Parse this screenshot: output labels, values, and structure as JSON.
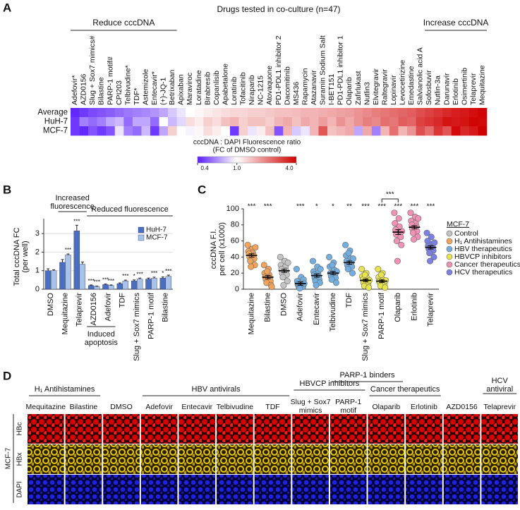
{
  "panel_labels": [
    "A",
    "B",
    "C",
    "D"
  ],
  "chart_data": [
    {
      "type": "heatmap",
      "title": "Drugs tested in co-culture (n=47)",
      "groups": [
        "Reduce cccDNA",
        "Increase cccDNA"
      ],
      "categories": [
        "Adefovir*",
        "AZD0156",
        "Slug + Sox7 mimics#",
        "Bilastine",
        "PARP-1 motif#",
        "CPI203",
        "Telbivudine*",
        "TDF*",
        "Astemizole",
        "Entecavir*",
        "(+)-JQ-1",
        "Betrixaban",
        "Apixaban",
        "Maraviroc",
        "Loratadine",
        "Birabresib",
        "Copanlisib",
        "Apabetalone",
        "Loratinib",
        "Tofacitinib",
        "Niraparib",
        "NC-1215",
        "Atovaquone",
        "PD1-PDL1 inhibitor 2",
        "Dacomitinib",
        "MS436",
        "Rapamycin",
        "Atazanavir",
        "Suramin Sodium Salt",
        "I-BET151",
        "PD1-PDL1 inhibitor 1",
        "Olaparib",
        "Zafirlukast",
        "Nutlin3",
        "Elvitegravir",
        "Raltegravir",
        "Lopinavir",
        "Levocetirizine",
        "Emedastine",
        "Salvianolic acid A",
        "Sofosbuvir",
        "Nutlin-3a",
        "Darunavir",
        "Erlotinib",
        "Osimertinib",
        "Telaprevir",
        "Mequitazine"
      ],
      "rows": [
        "Average",
        "HuH-7",
        "MCF-7"
      ],
      "values": [
        [
          0.42,
          0.45,
          0.48,
          0.5,
          0.52,
          0.55,
          0.58,
          0.6,
          0.62,
          0.65,
          0.7,
          0.8,
          0.9,
          1.0,
          1.05,
          1.1,
          1.15,
          1.2,
          1.25,
          1.25,
          1.3,
          1.3,
          1.35,
          1.4,
          1.4,
          1.45,
          1.5,
          1.5,
          1.55,
          1.6,
          1.65,
          1.7,
          1.8,
          1.9,
          2.0,
          2.1,
          2.2,
          2.3,
          2.4,
          2.6,
          2.8,
          3.0,
          3.2,
          3.4,
          3.5,
          3.7,
          3.9
        ],
        [
          0.45,
          0.6,
          0.55,
          0.6,
          0.7,
          0.75,
          0.55,
          0.7,
          0.7,
          0.55,
          1.0,
          0.75,
          0.85,
          1.2,
          1.1,
          1.3,
          1.2,
          1.4,
          1.5,
          1.3,
          1.4,
          1.4,
          1.3,
          1.5,
          1.6,
          1.4,
          1.6,
          1.5,
          1.7,
          1.5,
          1.8,
          1.6,
          1.8,
          2.0,
          1.9,
          2.2,
          2.1,
          2.4,
          2.3,
          2.8,
          3.0,
          3.2,
          3.6,
          3.5,
          3.6,
          3.9,
          3.8
        ],
        [
          0.45,
          0.42,
          0.5,
          0.45,
          0.5,
          0.9,
          0.6,
          0.55,
          0.75,
          0.45,
          0.7,
          1.3,
          1.0,
          0.95,
          1.05,
          1.2,
          1.1,
          1.0,
          0.45,
          1.3,
          0.9,
          1.1,
          1.4,
          0.5,
          1.5,
          0.8,
          0.9,
          1.5,
          2.5,
          1.4,
          1.5,
          1.6,
          0.7,
          1.6,
          0.6,
          1.5,
          2.2,
          1.5,
          1.8,
          2.6,
          2.2,
          3.0,
          2.5,
          3.8,
          3.2,
          3.5,
          4.0
        ]
      ],
      "colorbar_title": "cccDNA : DAPI Fluorescence ratio",
      "colorbar_subtitle": "(FC of DMSO control)",
      "log_scale": true,
      "clim": [
        0.4,
        4.0
      ],
      "cticks": [
        0.4,
        {
          "value": 1.0,
          "label": "1.0"
        },
        {
          "value": 4.0,
          "label": "4.0"
        }
      ],
      "colormap": [
        "#5a1cff",
        "#ffffff",
        "#d10000"
      ]
    },
    {
      "type": "bar",
      "y_label": [
        "Total cccDNA FC",
        "(per well)"
      ],
      "categories": [
        "DMSO",
        "Mequitazine",
        "Telaprevir",
        "AZD0156",
        "Adefovir",
        "TDF",
        "Slug + Sox7 mimics",
        "PARP-1 motif",
        "Bilastine"
      ],
      "series": [
        {
          "name": "HuH-7",
          "color": "#4a6fc0",
          "values": [
            1.0,
            1.45,
            3.15,
            0.2,
            0.25,
            0.3,
            0.45,
            0.55,
            0.6
          ],
          "errors": [
            0.1,
            0.15,
            0.3,
            0.03,
            0.03,
            0.04,
            0.05,
            0.05,
            0.06
          ],
          "significance": [
            null,
            null,
            "***",
            "***",
            "***",
            null,
            "*",
            null,
            "*"
          ]
        },
        {
          "name": "MCF-7",
          "color": "#a8c3ea",
          "values": [
            1.0,
            1.85,
            1.35,
            0.15,
            0.2,
            0.45,
            0.55,
            0.6,
            0.7
          ],
          "errors": [
            0.05,
            0.05,
            0.12,
            0.02,
            0.03,
            0.04,
            0.05,
            0.05,
            0.06
          ],
          "significance": [
            null,
            "***",
            null,
            "***",
            "***",
            "***",
            "***",
            "***",
            "***"
          ]
        }
      ],
      "annotations": {
        "increased": [
          "Increased",
          "fluorescence"
        ],
        "reduced": "Reduced fluorescence",
        "apoptosis": [
          "Induced",
          "apoptosis"
        ]
      },
      "ylim": [
        0,
        3.5
      ],
      "yticks": [
        0,
        1,
        2,
        3
      ],
      "grid": true,
      "legend": "upper right"
    },
    {
      "type": "dot",
      "y_label": [
        "cccDNA F.I.",
        "per cell (x1000)"
      ],
      "categories": [
        "Mequitazine",
        "Bilastine",
        "DMSO",
        "Adefovir",
        "Entecavir",
        "Telbivudine",
        "TDF",
        "Slug + Sox7 mimics",
        "PARP-1 motif",
        "Olaparib",
        "Erlotinib",
        "Telaprevir"
      ],
      "category_group": [
        1,
        1,
        0,
        2,
        2,
        2,
        2,
        3,
        3,
        4,
        4,
        5
      ],
      "legend_title": "MCF-7",
      "groups": [
        {
          "name": "Control",
          "color": "#c4c4c4"
        },
        {
          "name": "H₁ Antihistamines",
          "color": "#f3a45a"
        },
        {
          "name": "HBV therapeutics",
          "color": "#72aee0"
        },
        {
          "name": "HBVCP inhibitors",
          "color": "#e8e34e"
        },
        {
          "name": "Cancer therapeutics",
          "color": "#f291b6"
        },
        {
          "name": "HCV therapeutics",
          "color": "#7b80e3"
        }
      ],
      "points": [
        [
          55,
          50,
          47,
          45,
          44,
          42,
          40,
          38,
          35,
          30,
          28,
          52
        ],
        [
          30,
          25,
          20,
          18,
          15,
          14,
          12,
          10,
          8,
          5,
          22,
          3
        ],
        [
          40,
          35,
          30,
          28,
          25,
          23,
          20,
          18,
          15,
          10,
          5,
          33
        ],
        [
          25,
          15,
          10,
          8,
          6,
          5,
          4,
          3,
          2,
          12,
          1,
          7
        ],
        [
          35,
          28,
          22,
          20,
          18,
          16,
          14,
          12,
          10,
          8,
          5,
          25
        ],
        [
          40,
          33,
          28,
          24,
          20,
          18,
          16,
          14,
          12,
          8,
          30,
          22
        ],
        [
          55,
          48,
          42,
          38,
          35,
          33,
          30,
          28,
          25,
          20,
          45,
          38
        ],
        [
          25,
          20,
          16,
          14,
          12,
          10,
          8,
          6,
          4,
          2,
          18,
          11
        ],
        [
          25,
          20,
          15,
          12,
          10,
          9,
          8,
          6,
          4,
          2,
          18,
          11
        ],
        [
          95,
          88,
          82,
          78,
          74,
          70,
          68,
          65,
          60,
          55,
          35,
          72
        ],
        [
          95,
          90,
          85,
          82,
          80,
          78,
          75,
          72,
          70,
          65,
          62,
          88
        ],
        [
          70,
          65,
          60,
          56,
          54,
          52,
          50,
          48,
          45,
          40,
          35,
          58
        ]
      ],
      "means": [
        42,
        15,
        23,
        7,
        17,
        20,
        33,
        11,
        10,
        71,
        77,
        52
      ],
      "sem": [
        2,
        2,
        2,
        2,
        2,
        2,
        2,
        1.5,
        1.5,
        3,
        2,
        2
      ],
      "significance": [
        "***",
        "***",
        null,
        "***",
        "*",
        "*",
        "**",
        "***",
        "***",
        "***",
        "***",
        "***"
      ],
      "bracket_label": "***",
      "ylim": [
        0,
        100
      ],
      "yticks": [
        0,
        20,
        40,
        60,
        80,
        100
      ]
    }
  ],
  "micrographs": {
    "groups": [
      "H₁ Antihistamines",
      "HBV antivirals",
      "HBVCP inhibitors",
      "PARP-1 binders",
      "Cancer therapeutics",
      [
        "HCV",
        "antiviral"
      ]
    ],
    "columns": [
      [
        "Mequitazine"
      ],
      [
        "Bilastine"
      ],
      [
        "DMSO"
      ],
      [
        "Adefovir"
      ],
      [
        "Entecavir"
      ],
      [
        "Telbivudine"
      ],
      [
        "TDF"
      ],
      [
        "Slug + Sox7",
        "mimics"
      ],
      [
        "PARP-1",
        "motif"
      ],
      [
        "Olaparib"
      ],
      [
        "Erlotinib"
      ],
      [
        "AZD0156"
      ],
      [
        "Telaprevir"
      ]
    ],
    "rows": [
      "HBc",
      "HBx",
      "DAPI"
    ],
    "cell_line": "MCF-7"
  }
}
